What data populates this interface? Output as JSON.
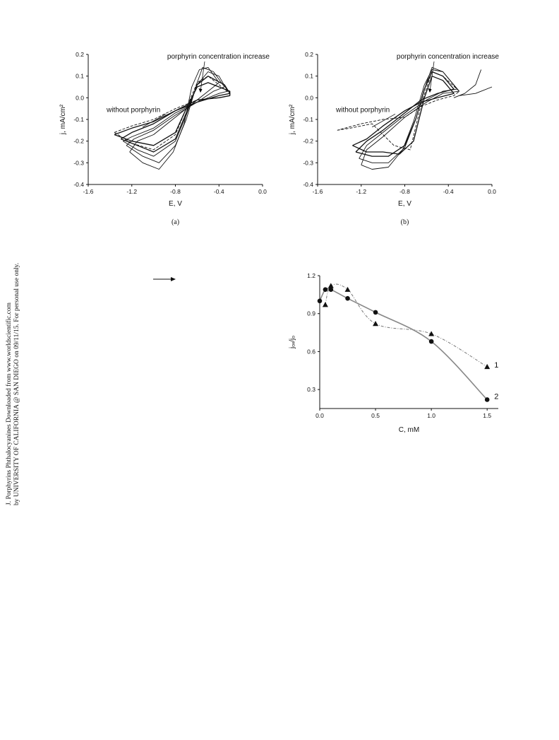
{
  "sidebar": {
    "line1": "J. Porphyrins Phthalocyanines Downloaded from www.worldscientific.com",
    "line2": "by UNIVERSITY OF CALIFORNIA @ SAN DIEGO on 09/11/15. For personal use only."
  },
  "chart_data": [
    {
      "id": "a",
      "type": "line",
      "caption": "(a)",
      "xlabel": "E, V",
      "ylabel": "j, mA/cm²",
      "xlim": [
        -1.6,
        0.0
      ],
      "ylim": [
        -0.4,
        0.2
      ],
      "xticks": [
        "-1.6",
        "-1.2",
        "-0.8",
        "-0.4",
        "0.0"
      ],
      "yticks": [
        "0.2",
        "0.1",
        "0.0",
        "-0.1",
        "-0.2",
        "-0.3",
        "-0.4"
      ],
      "annotations": [
        "porphyrin concentration increase",
        "without porphyrin"
      ],
      "series": [
        {
          "style": "dashed",
          "x": [
            -1.36,
            -1.2,
            -1.0,
            -0.8,
            -0.7,
            -0.6,
            -0.5,
            -0.4,
            -0.3,
            -0.3,
            -0.4,
            -0.6,
            -0.8,
            -1.0,
            -1.2,
            -1.36
          ],
          "y": [
            -0.16,
            -0.21,
            -0.24,
            -0.17,
            -0.05,
            0.07,
            0.1,
            0.06,
            0.02,
            0.01,
            0.0,
            -0.01,
            -0.05,
            -0.1,
            -0.13,
            -0.16
          ]
        },
        {
          "style": "solid",
          "x": [
            -1.36,
            -1.2,
            -1.0,
            -0.8,
            -0.7,
            -0.6,
            -0.5,
            -0.4,
            -0.3,
            -0.3,
            -0.4,
            -0.6,
            -0.8,
            -1.0,
            -1.2,
            -1.36
          ],
          "y": [
            -0.17,
            -0.2,
            -0.22,
            -0.16,
            -0.05,
            0.05,
            0.07,
            0.05,
            0.03,
            0.01,
            0.0,
            -0.01,
            -0.06,
            -0.11,
            -0.14,
            -0.17
          ]
        },
        {
          "style": "solid",
          "x": [
            -1.3,
            -1.15,
            -1.0,
            -0.8,
            -0.7,
            -0.6,
            -0.5,
            -0.35,
            -0.3,
            -0.4,
            -0.6,
            -0.8,
            -1.0,
            -1.2,
            -1.3
          ],
          "y": [
            -0.19,
            -0.22,
            -0.25,
            -0.19,
            -0.07,
            0.06,
            0.1,
            0.06,
            0.02,
            0.01,
            -0.02,
            -0.06,
            -0.12,
            -0.16,
            -0.19
          ]
        },
        {
          "style": "solid",
          "x": [
            -1.28,
            -1.15,
            -1.0,
            -0.8,
            -0.7,
            -0.6,
            -0.5,
            -0.4,
            -0.32,
            -0.4,
            -0.6,
            -0.8,
            -1.0,
            -1.2,
            -1.28
          ],
          "y": [
            -0.2,
            -0.24,
            -0.27,
            -0.2,
            -0.08,
            0.06,
            0.12,
            0.1,
            0.03,
            0.02,
            -0.02,
            -0.07,
            -0.14,
            -0.18,
            -0.2
          ]
        },
        {
          "style": "solid",
          "x": [
            -1.25,
            -1.1,
            -0.95,
            -0.8,
            -0.7,
            -0.6,
            -0.55,
            -0.45,
            -0.35,
            -0.45,
            -0.6,
            -0.8,
            -1.0,
            -1.18,
            -1.25
          ],
          "y": [
            -0.22,
            -0.27,
            -0.3,
            -0.22,
            -0.1,
            0.07,
            0.14,
            0.12,
            0.05,
            0.03,
            -0.02,
            -0.08,
            -0.15,
            -0.19,
            -0.22
          ]
        },
        {
          "style": "solid",
          "x": [
            -1.22,
            -1.1,
            -0.95,
            -0.82,
            -0.72,
            -0.65,
            -0.58,
            -0.5,
            -0.4,
            -0.5,
            -0.65,
            -0.8,
            -1.0,
            -1.15,
            -1.22
          ],
          "y": [
            -0.25,
            -0.3,
            -0.33,
            -0.25,
            -0.12,
            0.05,
            0.13,
            0.14,
            0.07,
            0.03,
            -0.03,
            -0.09,
            -0.17,
            -0.2,
            -0.25
          ]
        }
      ],
      "legend": "none"
    },
    {
      "id": "b",
      "type": "line",
      "caption": "(b)",
      "xlabel": "E, V",
      "ylabel": "j, mA/cm²",
      "xlim": [
        -1.6,
        0.0
      ],
      "ylim": [
        -0.4,
        0.2
      ],
      "xticks": [
        "-1.6",
        "-1.2",
        "-0.8",
        "-0.4",
        "0.0"
      ],
      "yticks": [
        "0.2",
        "0.1",
        "0.0",
        "-0.1",
        "-0.2",
        "-0.3",
        "-0.4"
      ],
      "annotations": [
        "porphyrin concentration increase",
        "without porphyrin"
      ],
      "series": [
        {
          "style": "dashed",
          "x": [
            -1.42,
            -1.3,
            -1.1,
            -0.9,
            -0.75,
            -0.65,
            -0.55,
            -0.45,
            -0.3,
            -0.35,
            -0.5,
            -0.65,
            -0.8,
            -1.0,
            -1.2,
            -1.42
          ],
          "y": [
            -0.15,
            -0.14,
            -0.12,
            -0.22,
            -0.24,
            -0.03,
            0.12,
            0.1,
            0.03,
            0.01,
            -0.01,
            -0.04,
            -0.09,
            -0.1,
            -0.12,
            -0.15
          ]
        },
        {
          "style": "solid",
          "x": [
            -1.28,
            -1.15,
            -1.0,
            -0.85,
            -0.72,
            -0.62,
            -0.55,
            -0.45,
            -0.35,
            -0.5,
            -0.65,
            -0.8,
            -1.0,
            -1.15,
            -1.28
          ],
          "y": [
            -0.22,
            -0.25,
            -0.25,
            -0.26,
            -0.2,
            0.0,
            0.1,
            0.08,
            0.02,
            0.0,
            -0.02,
            -0.06,
            -0.13,
            -0.19,
            -0.22
          ]
        },
        {
          "style": "solid",
          "x": [
            -1.25,
            -1.1,
            -0.95,
            -0.8,
            -0.7,
            -0.62,
            -0.55,
            -0.45,
            -0.35,
            -0.5,
            -0.65,
            -0.8,
            -1.0,
            -1.15,
            -1.25
          ],
          "y": [
            -0.25,
            -0.27,
            -0.27,
            -0.22,
            -0.1,
            0.04,
            0.12,
            0.1,
            0.04,
            0.02,
            -0.01,
            -0.07,
            -0.15,
            -0.2,
            -0.25
          ]
        },
        {
          "style": "solid",
          "x": [
            -1.22,
            -1.1,
            -0.95,
            -0.8,
            -0.7,
            -0.6,
            -0.55,
            -0.45,
            -0.32,
            -0.45,
            -0.6,
            -0.8,
            -1.0,
            -1.15,
            -1.22
          ],
          "y": [
            -0.28,
            -0.3,
            -0.3,
            -0.23,
            -0.1,
            0.07,
            0.14,
            0.12,
            0.04,
            0.03,
            -0.01,
            -0.08,
            -0.16,
            -0.22,
            -0.28
          ]
        },
        {
          "style": "solid",
          "x": [
            -1.2,
            -1.1,
            -0.95,
            -0.82,
            -0.72,
            -0.62,
            -0.55,
            -0.45,
            -0.3,
            -0.45,
            -0.6,
            -0.8,
            -1.0,
            -1.15,
            -1.2
          ],
          "y": [
            -0.31,
            -0.33,
            -0.32,
            -0.24,
            -0.11,
            0.06,
            0.13,
            0.12,
            0.03,
            0.02,
            -0.02,
            -0.09,
            -0.18,
            -0.24,
            -0.31
          ]
        },
        {
          "style": "solid",
          "x": [
            -0.35,
            -0.25,
            -0.15,
            -0.1
          ],
          "y": [
            0.0,
            0.02,
            0.06,
            0.13
          ]
        },
        {
          "style": "solid",
          "x": [
            -0.3,
            -0.15,
            0.0
          ],
          "y": [
            0.01,
            0.02,
            0.05
          ]
        }
      ],
      "legend": "none"
    },
    {
      "id": "c",
      "type": "scatter",
      "xlabel": "C, mM",
      "ylabel": "jₒₓ/jₒ",
      "xlim": [
        0.0,
        1.6
      ],
      "ylim": [
        0.15,
        1.2
      ],
      "xticks": [
        "0.0",
        "0.5",
        "1.0",
        "1.5"
      ],
      "yticks": [
        "1.2",
        "0.9",
        "0.6",
        "0.3"
      ],
      "series": [
        {
          "name": "1",
          "marker": "triangle",
          "line": "dash-dot",
          "x": [
            0.05,
            0.1,
            0.25,
            0.5,
            1.0,
            1.5
          ],
          "y": [
            0.97,
            1.12,
            1.09,
            0.82,
            0.74,
            0.48
          ]
        },
        {
          "name": "2",
          "marker": "circle",
          "line": "solid",
          "x": [
            0.0,
            0.05,
            0.1,
            0.25,
            0.5,
            1.0,
            1.5
          ],
          "y": [
            1.0,
            1.09,
            1.09,
            1.02,
            0.91,
            0.68,
            0.22
          ]
        }
      ],
      "legend": "inline-right"
    }
  ]
}
